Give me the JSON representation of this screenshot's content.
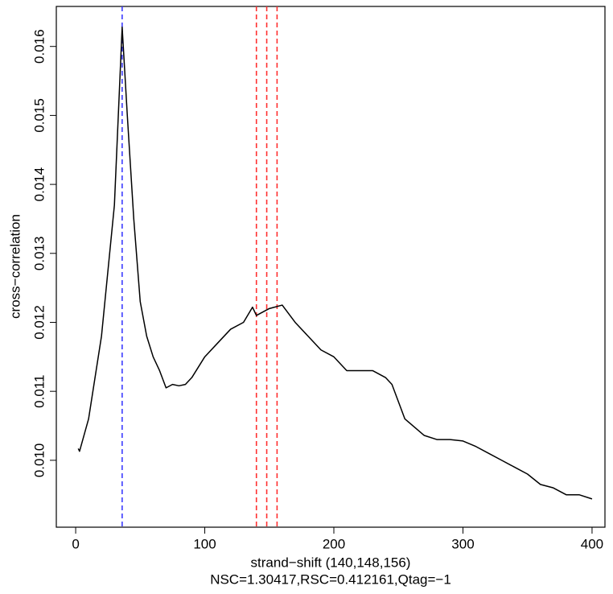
{
  "chart_data": {
    "type": "line",
    "xlabel": "strand−shift (140,148,156)",
    "subtitle": "NSC=1.30417,RSC=0.412161,Qtag=−1",
    "ylabel": "cross−correlation",
    "x": [
      2,
      3,
      10,
      20,
      30,
      36,
      40,
      45,
      50,
      55,
      60,
      65,
      70,
      75,
      80,
      85,
      90,
      100,
      110,
      120,
      130,
      137,
      140,
      150,
      160,
      170,
      180,
      190,
      200,
      210,
      220,
      230,
      240,
      245,
      255,
      270,
      280,
      290,
      300,
      310,
      320,
      330,
      340,
      350,
      360,
      370,
      380,
      390,
      400
    ],
    "series": [
      {
        "name": "cross-correlation",
        "color": "#000000",
        "values": [
          0.01017,
          0.01013,
          0.0106,
          0.0118,
          0.0137,
          0.01628,
          0.015,
          0.0135,
          0.0123,
          0.0118,
          0.0115,
          0.0113,
          0.01105,
          0.0111,
          0.01108,
          0.0111,
          0.0112,
          0.0115,
          0.0117,
          0.0119,
          0.012,
          0.01222,
          0.0121,
          0.0122,
          0.01225,
          0.012,
          0.0118,
          0.0116,
          0.0115,
          0.0113,
          0.0113,
          0.0113,
          0.0112,
          0.0111,
          0.0106,
          0.01036,
          0.0103,
          0.0103,
          0.01028,
          0.0102,
          0.0101,
          0.01,
          0.0099,
          0.0098,
          0.00965,
          0.0096,
          0.0095,
          0.0095,
          0.00944
        ]
      }
    ],
    "vlines": [
      {
        "value": 36,
        "color": "#3b3bff"
      },
      {
        "value": 140,
        "color": "#ff3030"
      },
      {
        "value": 148,
        "color": "#ff3030"
      },
      {
        "value": 156,
        "color": "#ff3030"
      }
    ],
    "xlim": [
      -15,
      410
    ],
    "ylim": [
      0.00903,
      0.01658
    ],
    "xticks": [
      0,
      100,
      200,
      300,
      400
    ],
    "yticks": [
      {
        "value": 0.01,
        "label": "0.010"
      },
      0.011,
      0.012,
      0.013,
      0.014,
      0.015,
      0.016
    ]
  }
}
